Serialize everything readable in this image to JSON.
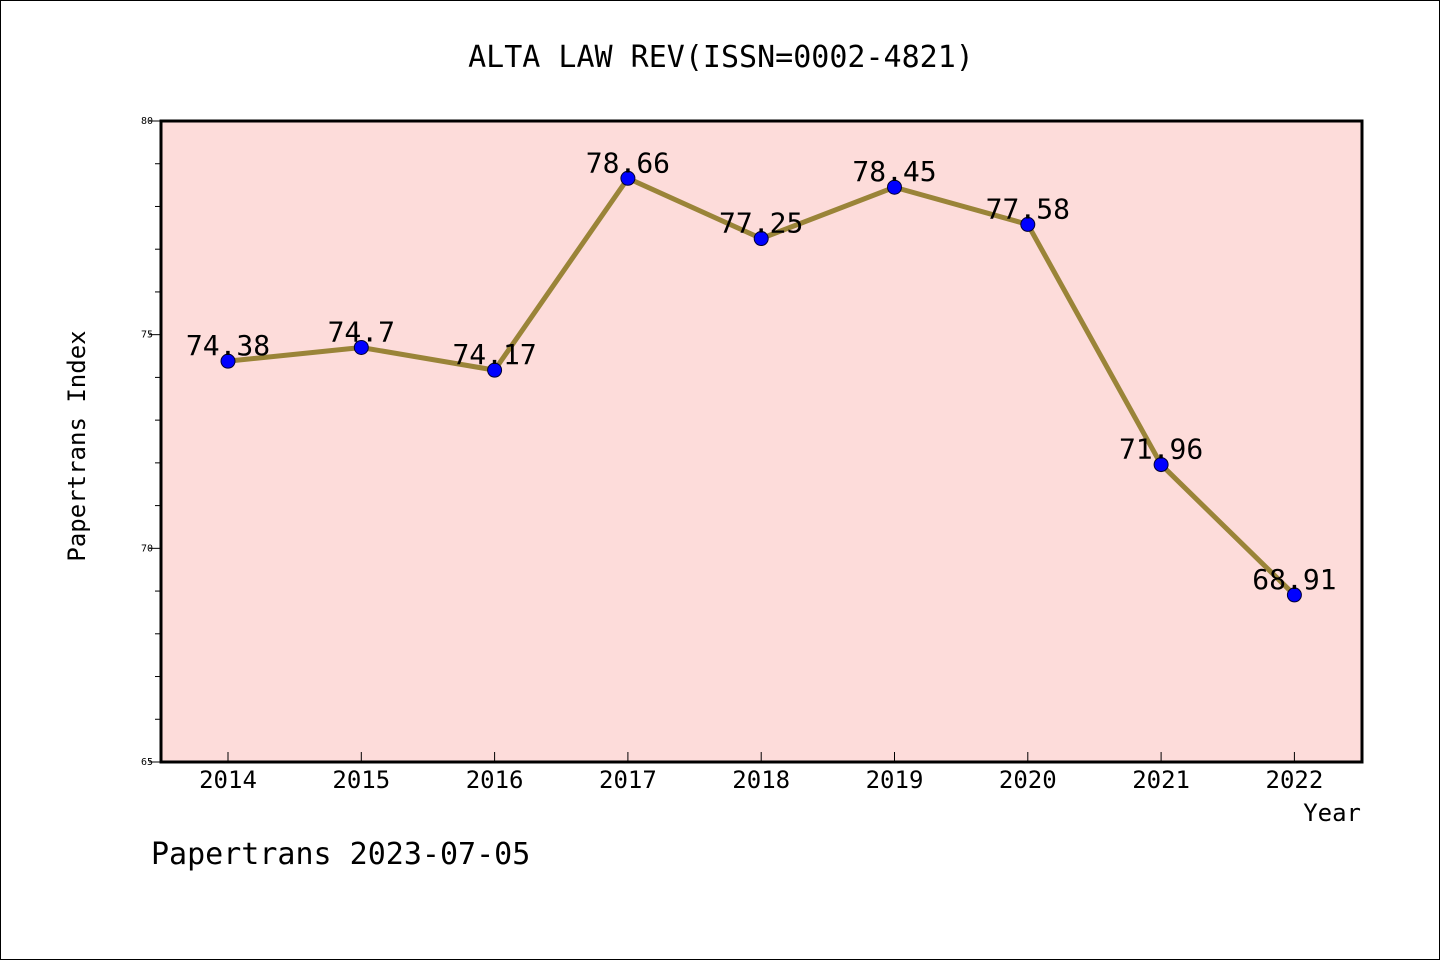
{
  "chart_data": {
    "type": "line",
    "title": "ALTA LAW REV(ISSN=0002-4821)",
    "xlabel": "Year",
    "ylabel": "Papertrans Index",
    "categories": [
      "2014",
      "2015",
      "2016",
      "2017",
      "2018",
      "2019",
      "2020",
      "2021",
      "2022"
    ],
    "values": [
      74.38,
      74.7,
      74.17,
      78.66,
      77.25,
      78.45,
      77.58,
      71.96,
      68.91
    ],
    "data_labels": [
      "74.38",
      "74.7",
      "74.17",
      "78.66",
      "77.25",
      "78.45",
      "77.58",
      "71.96",
      "68.91"
    ],
    "ylim": [
      65,
      80
    ],
    "yticks": [
      "65",
      "70",
      "75",
      "80"
    ],
    "grid": false,
    "colors": {
      "plot_background": "#fddcda",
      "line": "#9a8438",
      "marker": "#0000ff"
    }
  },
  "footer": {
    "caption": "Papertrans 2023-07-05"
  }
}
